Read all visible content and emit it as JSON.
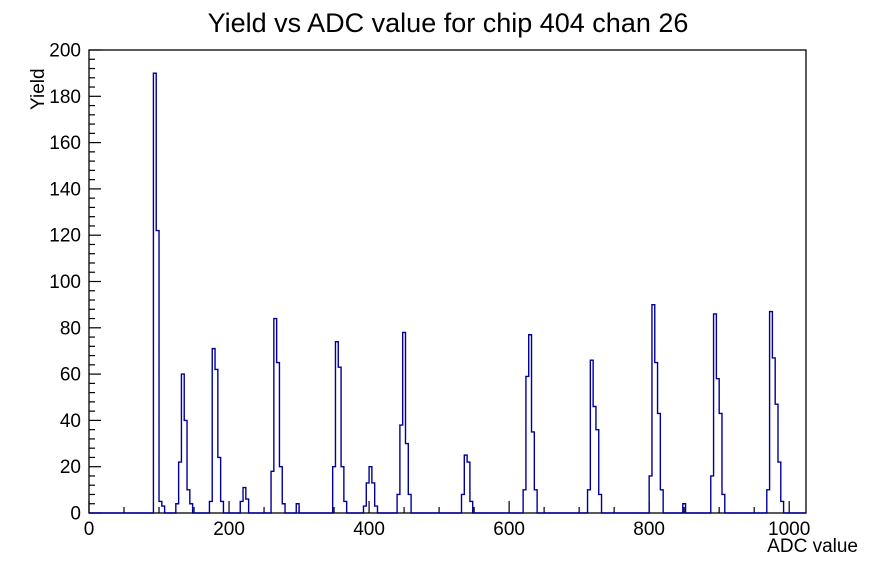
{
  "chart_data": {
    "type": "bar",
    "subtype": "step-histogram",
    "title": "Yield vs ADC value for chip 404 chan 26",
    "xlabel": "ADC value",
    "ylabel": "Yield",
    "xlim": [
      0,
      1024
    ],
    "ylim": [
      0,
      200
    ],
    "x_major_step": 200,
    "x_minor_step": 50,
    "x_major_tick_labels": [
      "0",
      "200",
      "400",
      "600",
      "800",
      "1000"
    ],
    "y_major_step": 20,
    "y_minor_step": 4,
    "y_major_tick_labels": [
      "0",
      "20",
      "40",
      "60",
      "80",
      "100",
      "120",
      "140",
      "160",
      "180",
      "200"
    ],
    "grid": "off",
    "legend": "none",
    "line_color": "#000099",
    "frame_color": "#000000",
    "background_color": "#ffffff",
    "bin_width": 4,
    "bins": [
      [
        92,
        190
      ],
      [
        96,
        122
      ],
      [
        100,
        5
      ],
      [
        104,
        3
      ],
      [
        124,
        4
      ],
      [
        128,
        22
      ],
      [
        132,
        60
      ],
      [
        136,
        40
      ],
      [
        140,
        10
      ],
      [
        144,
        4
      ],
      [
        172,
        5
      ],
      [
        176,
        71
      ],
      [
        180,
        62
      ],
      [
        184,
        24
      ],
      [
        188,
        5
      ],
      [
        216,
        5
      ],
      [
        220,
        11
      ],
      [
        224,
        6
      ],
      [
        260,
        18
      ],
      [
        264,
        84
      ],
      [
        268,
        65
      ],
      [
        272,
        20
      ],
      [
        276,
        4
      ],
      [
        296,
        4
      ],
      [
        348,
        20
      ],
      [
        352,
        74
      ],
      [
        356,
        63
      ],
      [
        360,
        20
      ],
      [
        364,
        5
      ],
      [
        392,
        3
      ],
      [
        396,
        13
      ],
      [
        400,
        20
      ],
      [
        404,
        13
      ],
      [
        408,
        3
      ],
      [
        440,
        8
      ],
      [
        444,
        38
      ],
      [
        448,
        78
      ],
      [
        452,
        30
      ],
      [
        456,
        8
      ],
      [
        532,
        8
      ],
      [
        536,
        25
      ],
      [
        540,
        22
      ],
      [
        544,
        5
      ],
      [
        620,
        10
      ],
      [
        624,
        59
      ],
      [
        628,
        77
      ],
      [
        632,
        35
      ],
      [
        636,
        10
      ],
      [
        712,
        10
      ],
      [
        716,
        66
      ],
      [
        720,
        46
      ],
      [
        724,
        36
      ],
      [
        728,
        8
      ],
      [
        800,
        16
      ],
      [
        804,
        90
      ],
      [
        808,
        65
      ],
      [
        812,
        43
      ],
      [
        816,
        10
      ],
      [
        848,
        4
      ],
      [
        888,
        16
      ],
      [
        892,
        86
      ],
      [
        896,
        58
      ],
      [
        900,
        43
      ],
      [
        904,
        8
      ],
      [
        968,
        10
      ],
      [
        972,
        87
      ],
      [
        976,
        67
      ],
      [
        980,
        47
      ],
      [
        984,
        22
      ],
      [
        988,
        5
      ]
    ]
  }
}
